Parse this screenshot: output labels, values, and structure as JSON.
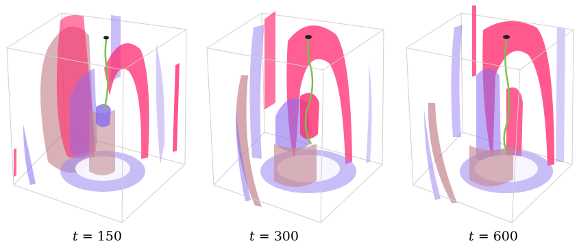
{
  "panels": [
    {
      "caption_var": "t",
      "caption_eq": " = ",
      "caption_value": "150"
    },
    {
      "caption_var": "t",
      "caption_eq": " = ",
      "caption_value": "300"
    },
    {
      "caption_var": "t",
      "caption_eq": " = ",
      "caption_value": "600"
    }
  ],
  "colors": {
    "magenta_surface": "#ff2a6d",
    "violet_surface": "#8a6cf0",
    "mauve_surface": "#b9707a",
    "filament": "#7cc04a",
    "box_edge": "#c8c8c8"
  }
}
